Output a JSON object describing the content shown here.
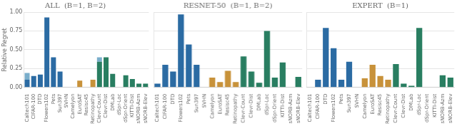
{
  "chart_data": [
    {
      "type": "bar",
      "title": "ALL  (B=1, B=2)",
      "ylabel": "Relative Regret",
      "categories": [
        "Caltech101",
        "CIFAR-100",
        "DTD",
        "Flowers102",
        "Pets",
        "Sun397",
        "SVHN",
        "Camelyon",
        "EuroSAT",
        "Resisc45",
        "Retinopathy",
        "Clevr-Count",
        "Clevr-Dist",
        "DMLab",
        "dSpr-Loc",
        "dSpr-Orient",
        "KITTI-Dist",
        "sNORB-Azm",
        "sNORB-Elev"
      ],
      "series": [
        {
          "colors": [
            "#2B6BA3",
            "#2B6BA3",
            "#2B6BA3",
            "#2B6BA3",
            "#2B6BA3",
            "#2B6BA3",
            "#2B6BA3",
            "#C8923A",
            "#C8923A",
            "#C8923A",
            "#C8923A",
            "#297E61",
            "#297E61",
            "#297E61",
            "#297E61",
            "#297E61",
            "#297E61",
            "#297E61",
            "#297E61"
          ],
          "values": [
            0.1,
            0.15,
            0.17,
            0.93,
            0.4,
            0.21,
            0.0,
            0.0,
            0.09,
            0.0,
            0.1,
            0.34,
            0.4,
            0.18,
            0.0,
            0.16,
            0.11,
            0.05,
            0.05
          ]
        },
        {
          "color": "#7AAECB",
          "values": [
            0.09,
            0.0,
            0.0,
            0.0,
            0.0,
            0.0,
            0.0,
            0.0,
            0.0,
            0.0,
            0.0,
            0.06,
            0.0,
            0.0,
            0.0,
            0.0,
            0.0,
            0.0,
            0.0
          ]
        }
      ],
      "stacked": true,
      "ylim": [
        0.0,
        1.0
      ],
      "yticks": [
        {
          "value": 0.0,
          "label": "0.00"
        },
        {
          "value": 0.25,
          "label": "0.25"
        },
        {
          "value": 0.5,
          "label": "0.50"
        },
        {
          "value": 0.75,
          "label": "0.75"
        },
        {
          "value": 1.0,
          "label": "1.00"
        }
      ],
      "grid": true
    },
    {
      "type": "bar",
      "title": "RESNET-50  (B=1, B=2)",
      "categories": [
        "Caltech101",
        "CIFAR-100",
        "DTD",
        "Flowers102",
        "Pets",
        "Sun397",
        "SVHN",
        "Camelyon",
        "EuroSAT",
        "Resisc45",
        "Retinopathy",
        "Clevr-Count",
        "Clevr-Dist",
        "DMLab",
        "dSpr-Loc",
        "dSpr-Orient",
        "KITTI-Dist",
        "sNORB-Azm",
        "sNORB-Elev"
      ],
      "series": [
        {
          "colors": [
            "#2B6BA3",
            "#2B6BA3",
            "#2B6BA3",
            "#2B6BA3",
            "#2B6BA3",
            "#2B6BA3",
            "#2B6BA3",
            "#C8923A",
            "#C8923A",
            "#C8923A",
            "#C8923A",
            "#297E61",
            "#297E61",
            "#297E61",
            "#297E61",
            "#297E61",
            "#297E61",
            "#297E61",
            "#297E61"
          ],
          "values": [
            0.05,
            0.3,
            0.21,
            0.97,
            0.57,
            0.3,
            0.0,
            0.13,
            0.07,
            0.22,
            0.07,
            0.41,
            0.21,
            0.06,
            0.75,
            0.13,
            0.33,
            0.0,
            0.14
          ]
        }
      ],
      "ylim": [
        0.0,
        1.0
      ],
      "yticks": [
        {
          "value": 0.0,
          "label": "0.00"
        },
        {
          "value": 0.25,
          "label": "0.25"
        },
        {
          "value": 0.5,
          "label": "0.50"
        },
        {
          "value": 0.75,
          "label": "0.75"
        },
        {
          "value": 1.0,
          "label": "1.00"
        }
      ],
      "tick_labels": "x",
      "grid": true
    },
    {
      "type": "bar",
      "title": "EXPERT  (B=1)",
      "categories": [
        "Caltech101",
        "CIFAR-100",
        "DTD",
        "Flowers102",
        "Pets",
        "Sun397",
        "SVHN",
        "Camelyon",
        "EuroSAT",
        "Resisc45",
        "Retinopathy",
        "Clevr-Count",
        "Clevr-Dist",
        "DMLab",
        "dSpr-Loc",
        "dSpr-Orient",
        "KITTI-Dist",
        "sNORB-Azm",
        "sNORB-Elev"
      ],
      "series": [
        {
          "colors": [
            "#2B6BA3",
            "#2B6BA3",
            "#2B6BA3",
            "#2B6BA3",
            "#2B6BA3",
            "#2B6BA3",
            "#2B6BA3",
            "#C8923A",
            "#C8923A",
            "#C8923A",
            "#C8923A",
            "#297E61",
            "#297E61",
            "#297E61",
            "#297E61",
            "#297E61",
            "#297E61",
            "#297E61",
            "#297E61"
          ],
          "values": [
            0.0,
            0.1,
            0.79,
            0.52,
            0.1,
            0.34,
            0.0,
            0.12,
            0.3,
            0.15,
            0.1,
            0.31,
            0.05,
            0.02,
            0.79,
            0.0,
            0.0,
            0.16,
            0.13
          ]
        }
      ],
      "ylim": [
        0.0,
        1.0
      ],
      "yticks": [
        {
          "value": 0.0,
          "label": "0.00"
        },
        {
          "value": 0.25,
          "label": "0.25"
        },
        {
          "value": 0.5,
          "label": "0.50"
        },
        {
          "value": 0.75,
          "label": "0.75"
        },
        {
          "value": 1.0,
          "label": "1.00"
        }
      ],
      "tick_labels": "x",
      "grid": true
    }
  ]
}
